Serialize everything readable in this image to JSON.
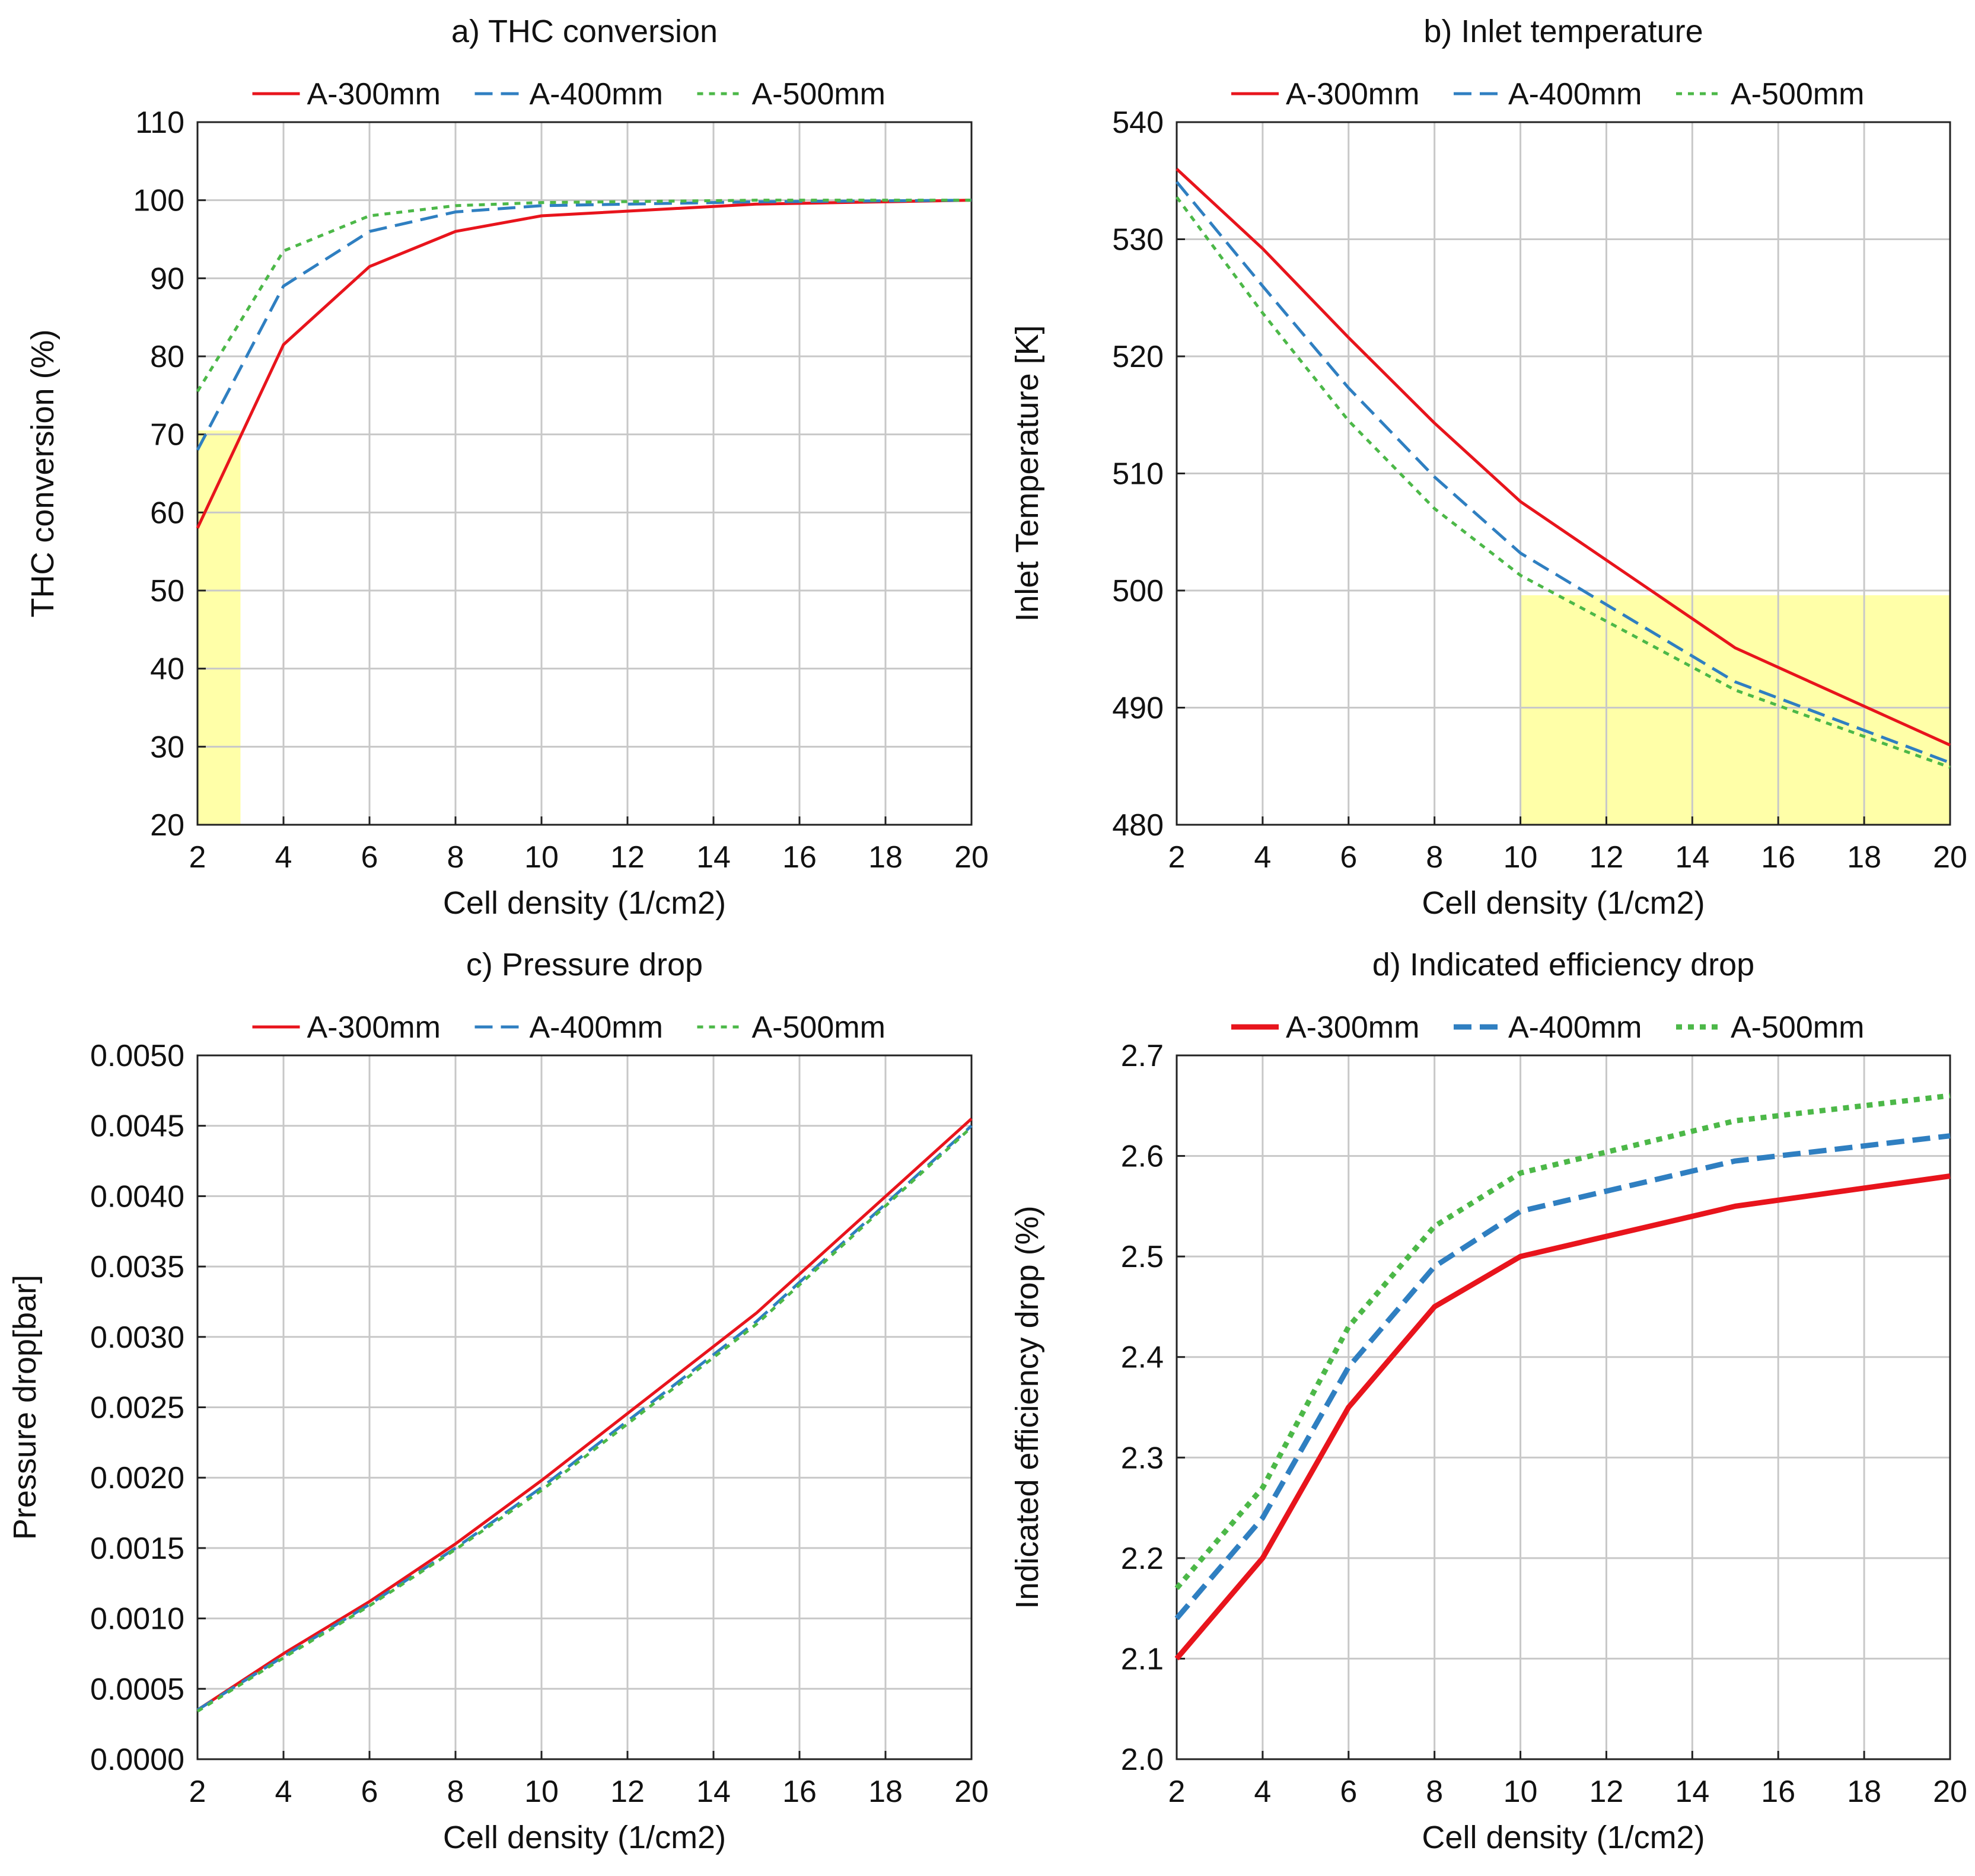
{
  "chart_data": [
    {
      "type": "line",
      "title": "a) THC conversion",
      "xlabel": "Cell density (1/cm2)",
      "ylabel": "THC conversion (%)",
      "xlim": [
        2,
        20
      ],
      "ylim": [
        20,
        110
      ],
      "xticks": [
        2,
        4,
        6,
        8,
        10,
        12,
        14,
        16,
        18,
        20
      ],
      "yticks": [
        20,
        30,
        40,
        50,
        60,
        70,
        80,
        90,
        100,
        110
      ],
      "ytick_labels": [
        "20",
        "30",
        "40",
        "50",
        "60",
        "70",
        "80",
        "90",
        "100",
        "110"
      ],
      "grid": true,
      "legend": "top",
      "x": [
        2,
        4,
        6,
        8,
        10,
        15,
        20
      ],
      "series": [
        {
          "name": "A-300mm",
          "values": [
            58,
            81.5,
            91.5,
            96,
            98,
            99.5,
            100
          ],
          "color": "#e8141c",
          "style": "solid"
        },
        {
          "name": "A-400mm",
          "values": [
            68,
            89,
            96,
            98.5,
            99.3,
            99.8,
            100
          ],
          "color": "#2f7fc1",
          "style": "dashed"
        },
        {
          "name": "A-500mm",
          "values": [
            75.5,
            93.5,
            98,
            99.3,
            99.7,
            100,
            100
          ],
          "color": "#4cb848",
          "style": "dotted"
        }
      ],
      "highlight": {
        "x": [
          2,
          3
        ],
        "y": [
          20,
          70.5
        ],
        "color": "#ffff99"
      }
    },
    {
      "type": "line",
      "title": "b) Inlet temperature",
      "xlabel": "Cell density (1/cm2)",
      "ylabel": "Inlet Temperature [K]",
      "xlim": [
        2,
        20
      ],
      "ylim": [
        480,
        540
      ],
      "xticks": [
        2,
        4,
        6,
        8,
        10,
        12,
        14,
        16,
        18,
        20
      ],
      "yticks": [
        480,
        490,
        500,
        510,
        520,
        530,
        540
      ],
      "ytick_labels": [
        "480",
        "490",
        "500",
        "510",
        "520",
        "530",
        "540"
      ],
      "grid": true,
      "legend": "top",
      "x": [
        2,
        4,
        6,
        8,
        10,
        15,
        20
      ],
      "series": [
        {
          "name": "A-300mm",
          "values": [
            536,
            529.2,
            521.6,
            514.3,
            507.6,
            495.1,
            486.8
          ],
          "color": "#e8141c",
          "style": "solid"
        },
        {
          "name": "A-400mm",
          "values": [
            534.9,
            526,
            517.3,
            509.7,
            503.2,
            492.2,
            485.3
          ],
          "color": "#2f7fc1",
          "style": "dashed"
        },
        {
          "name": "A-500mm",
          "values": [
            533.6,
            523.7,
            514.5,
            507,
            501.3,
            491.5,
            484.9
          ],
          "color": "#4cb848",
          "style": "dotted"
        }
      ],
      "highlight": {
        "x": [
          10,
          20
        ],
        "y": [
          480,
          499.6
        ],
        "color": "#ffff99"
      }
    },
    {
      "type": "line",
      "title": "c) Pressure drop",
      "xlabel": "Cell density (1/cm2)",
      "ylabel": "Pressure drop[bar]",
      "xlim": [
        2,
        20
      ],
      "ylim": [
        0,
        0.005
      ],
      "xticks": [
        2,
        4,
        6,
        8,
        10,
        12,
        14,
        16,
        18,
        20
      ],
      "yticks": [
        0,
        0.0005,
        0.001,
        0.0015,
        0.002,
        0.0025,
        0.003,
        0.0035,
        0.004,
        0.0045,
        0.005
      ],
      "ytick_labels": [
        "0.0000",
        "0.0005",
        "0.0010",
        "0.0015",
        "0.0020",
        "0.0025",
        "0.0030",
        "0.0035",
        "0.0040",
        "0.0045",
        "0.0050"
      ],
      "grid": true,
      "legend": "top",
      "x": [
        2,
        4,
        6,
        8,
        10,
        15,
        20
      ],
      "series": [
        {
          "name": "A-300mm",
          "values": [
            0.00035,
            0.00075,
            0.00112,
            0.00153,
            0.00198,
            0.00317,
            0.00455
          ],
          "color": "#e8141c",
          "style": "solid"
        },
        {
          "name": "A-400mm",
          "values": [
            0.00035,
            0.00073,
            0.0011,
            0.0015,
            0.00193,
            0.00311,
            0.0045
          ],
          "color": "#2f7fc1",
          "style": "dashed"
        },
        {
          "name": "A-500mm",
          "values": [
            0.00034,
            0.00072,
            0.00109,
            0.00149,
            0.00191,
            0.00309,
            0.00449
          ],
          "color": "#4cb848",
          "style": "dotted"
        }
      ]
    },
    {
      "type": "line",
      "title": "d) Indicated efficiency drop",
      "xlabel": "Cell density (1/cm2)",
      "ylabel": "Indicated efficiency drop (%)",
      "xlim": [
        2,
        20
      ],
      "ylim": [
        2.0,
        2.7
      ],
      "xticks": [
        2,
        4,
        6,
        8,
        10,
        12,
        14,
        16,
        18,
        20
      ],
      "yticks": [
        2.0,
        2.1,
        2.2,
        2.3,
        2.4,
        2.5,
        2.6,
        2.7
      ],
      "ytick_labels": [
        "2.0",
        "2.1",
        "2.2",
        "2.3",
        "2.4",
        "2.5",
        "2.6",
        "2.7"
      ],
      "grid": true,
      "legend": "top",
      "x": [
        2,
        4,
        6,
        8,
        10,
        15,
        20
      ],
      "series": [
        {
          "name": "A-300mm",
          "values": [
            2.1,
            2.2,
            2.35,
            2.45,
            2.5,
            2.55,
            2.58
          ],
          "color": "#e8141c",
          "style": "solid"
        },
        {
          "name": "A-400mm",
          "values": [
            2.14,
            2.24,
            2.39,
            2.49,
            2.545,
            2.595,
            2.62
          ],
          "color": "#2f7fc1",
          "style": "dashed"
        },
        {
          "name": "A-500mm",
          "values": [
            2.17,
            2.27,
            2.43,
            2.53,
            2.583,
            2.635,
            2.66
          ],
          "color": "#4cb848",
          "style": "dotted"
        }
      ]
    }
  ]
}
